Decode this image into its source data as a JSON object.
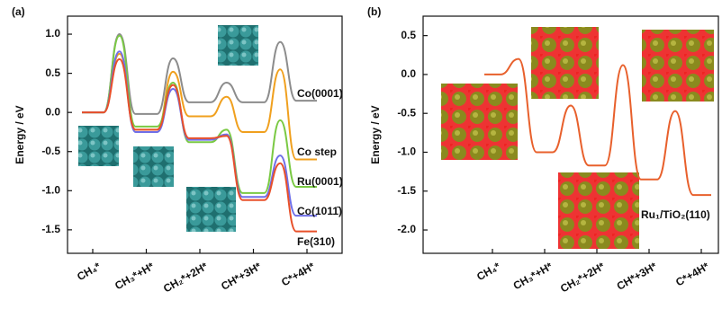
{
  "chart_data": [
    {
      "type": "line",
      "panel_label": "(a)",
      "y_label": "Energy / eV",
      "categories": [
        "CH₄*",
        null,
        "CH₃*+H*",
        null,
        "CH₂*+2H*",
        null,
        "CH*+3H*",
        null,
        "C*+4H*"
      ],
      "ylim": [
        -1.8,
        1.23
      ],
      "yticks": [
        {
          "value": -1.5,
          "label": "-1.5"
        },
        {
          "value": -1.0,
          "label": "-1.0"
        },
        -0.5,
        {
          "value": 0,
          "label": "0.0"
        },
        0.5,
        {
          "value": 1.0,
          "label": "1.0"
        }
      ],
      "series": [
        {
          "name": "Co(0001)",
          "color": "#8c8c8c",
          "values": [
            0,
            1.0,
            -0.02,
            0.69,
            0.13,
            0.38,
            0.13,
            0.9,
            0.15
          ]
        },
        {
          "name": "Co step",
          "color": "#f0a01e",
          "values": [
            0,
            0.75,
            -0.22,
            0.52,
            -0.05,
            0.2,
            -0.25,
            0.55,
            -0.6
          ]
        },
        {
          "name": "Ru(0001)",
          "color": "#7ac943",
          "values": [
            0,
            0.98,
            -0.18,
            0.38,
            -0.38,
            -0.22,
            -1.03,
            -0.1,
            -0.95
          ]
        },
        {
          "name": "Co(1011̄)",
          "color": "#6f6fe8",
          "values": [
            0,
            0.78,
            -0.25,
            0.3,
            -0.35,
            -0.28,
            -1.08,
            -0.55,
            -1.32
          ]
        },
        {
          "name": "Fe(310)",
          "color": "#e8502a",
          "values": [
            0,
            0.68,
            -0.22,
            0.35,
            -0.33,
            -0.3,
            -1.12,
            -0.65,
            -1.52
          ]
        }
      ]
    },
    {
      "type": "line",
      "panel_label": "(b)",
      "y_label": "Energy / eV",
      "categories": [
        "CH₄*",
        null,
        "CH₃*+H*",
        null,
        "CH₂*+2H*",
        null,
        "CH*+3H*",
        null,
        "C*+4H*"
      ],
      "ylim": [
        -2.3,
        0.75
      ],
      "yticks": [
        {
          "value": -2.0,
          "label": "-2.0"
        },
        -1.5,
        {
          "value": -1.0,
          "label": "-1.0"
        },
        -0.5,
        {
          "value": 0,
          "label": "0.0"
        },
        0.5
      ],
      "series": [
        {
          "name": "Ru₁/TiO₂(110)",
          "color": "#e8602c",
          "values": [
            0,
            0.2,
            -1.0,
            -0.4,
            -1.17,
            0.12,
            -1.35,
            -0.47,
            -1.55
          ]
        }
      ]
    }
  ]
}
